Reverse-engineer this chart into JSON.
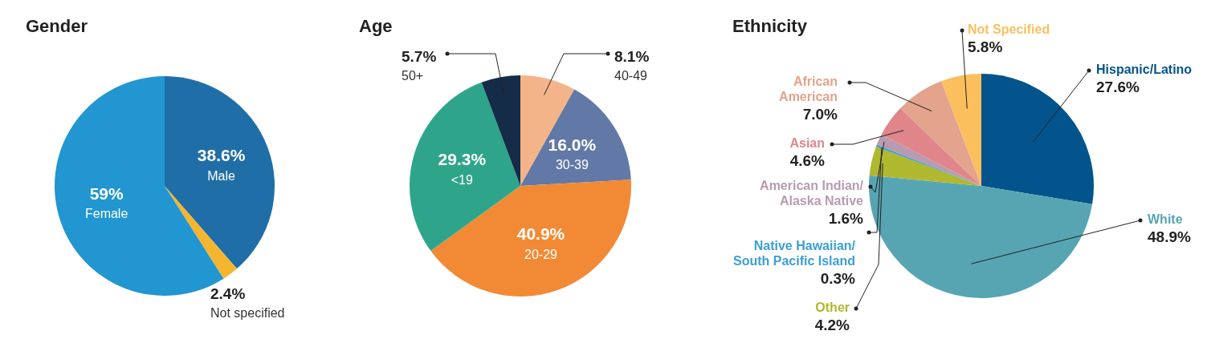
{
  "chart_data": [
    {
      "type": "pie",
      "title": "Gender",
      "categories": [
        "Male",
        "Not specified",
        "Female"
      ],
      "values": [
        38.6,
        2.4,
        59
      ],
      "value_labels": [
        "38.6%",
        "2.4%",
        "59%"
      ],
      "colors": [
        "#1f6ea8",
        "#f5b52e",
        "#2196d0"
      ],
      "legend": false
    },
    {
      "type": "pie",
      "title": "Age",
      "categories": [
        "40-49",
        "30-39",
        "20-29",
        "<19",
        "50+"
      ],
      "values": [
        8.1,
        16.0,
        40.9,
        29.3,
        5.7
      ],
      "value_labels": [
        "8.1%",
        "16.0%",
        "40.9%",
        "29.3%",
        "5.7%"
      ],
      "colors": [
        "#f4b48a",
        "#6278a6",
        "#f28a35",
        "#2ea58a",
        "#152c48"
      ],
      "legend": false
    },
    {
      "type": "pie",
      "title": "Ethnicity",
      "categories": [
        "Hispanic/Latino",
        "White",
        "Other",
        "Native Hawaiian/South Pacific Island",
        "American Indian/Alaska Native",
        "Asian",
        "African American",
        "Not Specified"
      ],
      "values": [
        27.6,
        48.9,
        4.2,
        0.3,
        1.6,
        4.6,
        7.0,
        5.8
      ],
      "value_labels": [
        "27.6%",
        "48.9%",
        "4.2%",
        "0.3%",
        "1.6%",
        "4.6%",
        "7.0%",
        "5.8%"
      ],
      "colors": [
        "#03548c",
        "#57a5b3",
        "#b0b82f",
        "#3b9fd4",
        "#b89bb0",
        "#e0868a",
        "#e3a38c",
        "#fbbf5e"
      ],
      "legend": false
    }
  ]
}
